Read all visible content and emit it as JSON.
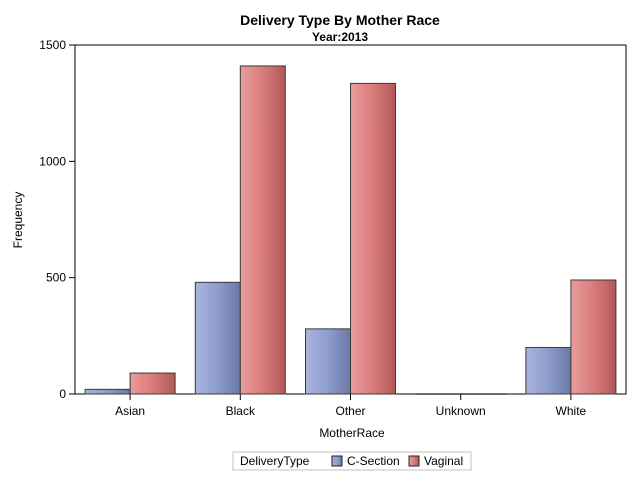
{
  "chart_data": {
    "type": "bar",
    "title": "Delivery Type By Mother Race",
    "subtitle": "Year:2013",
    "xlabel": "MotherRace",
    "ylabel": "Frequency",
    "categories": [
      "Asian",
      "Black",
      "Other",
      "Unknown",
      "White"
    ],
    "series": [
      {
        "name": "C-Section",
        "values": [
          20,
          480,
          280,
          1,
          200
        ],
        "color": "#8b9bc8"
      },
      {
        "name": "Vaginal",
        "values": [
          90,
          1410,
          1335,
          1,
          490
        ],
        "color": "#d87878"
      }
    ],
    "ylim": [
      0,
      1500
    ],
    "yticks": [
      0,
      500,
      1000,
      1500
    ],
    "grid": false,
    "legend": {
      "title": "DeliveryType",
      "placement": "bottom-center"
    }
  }
}
